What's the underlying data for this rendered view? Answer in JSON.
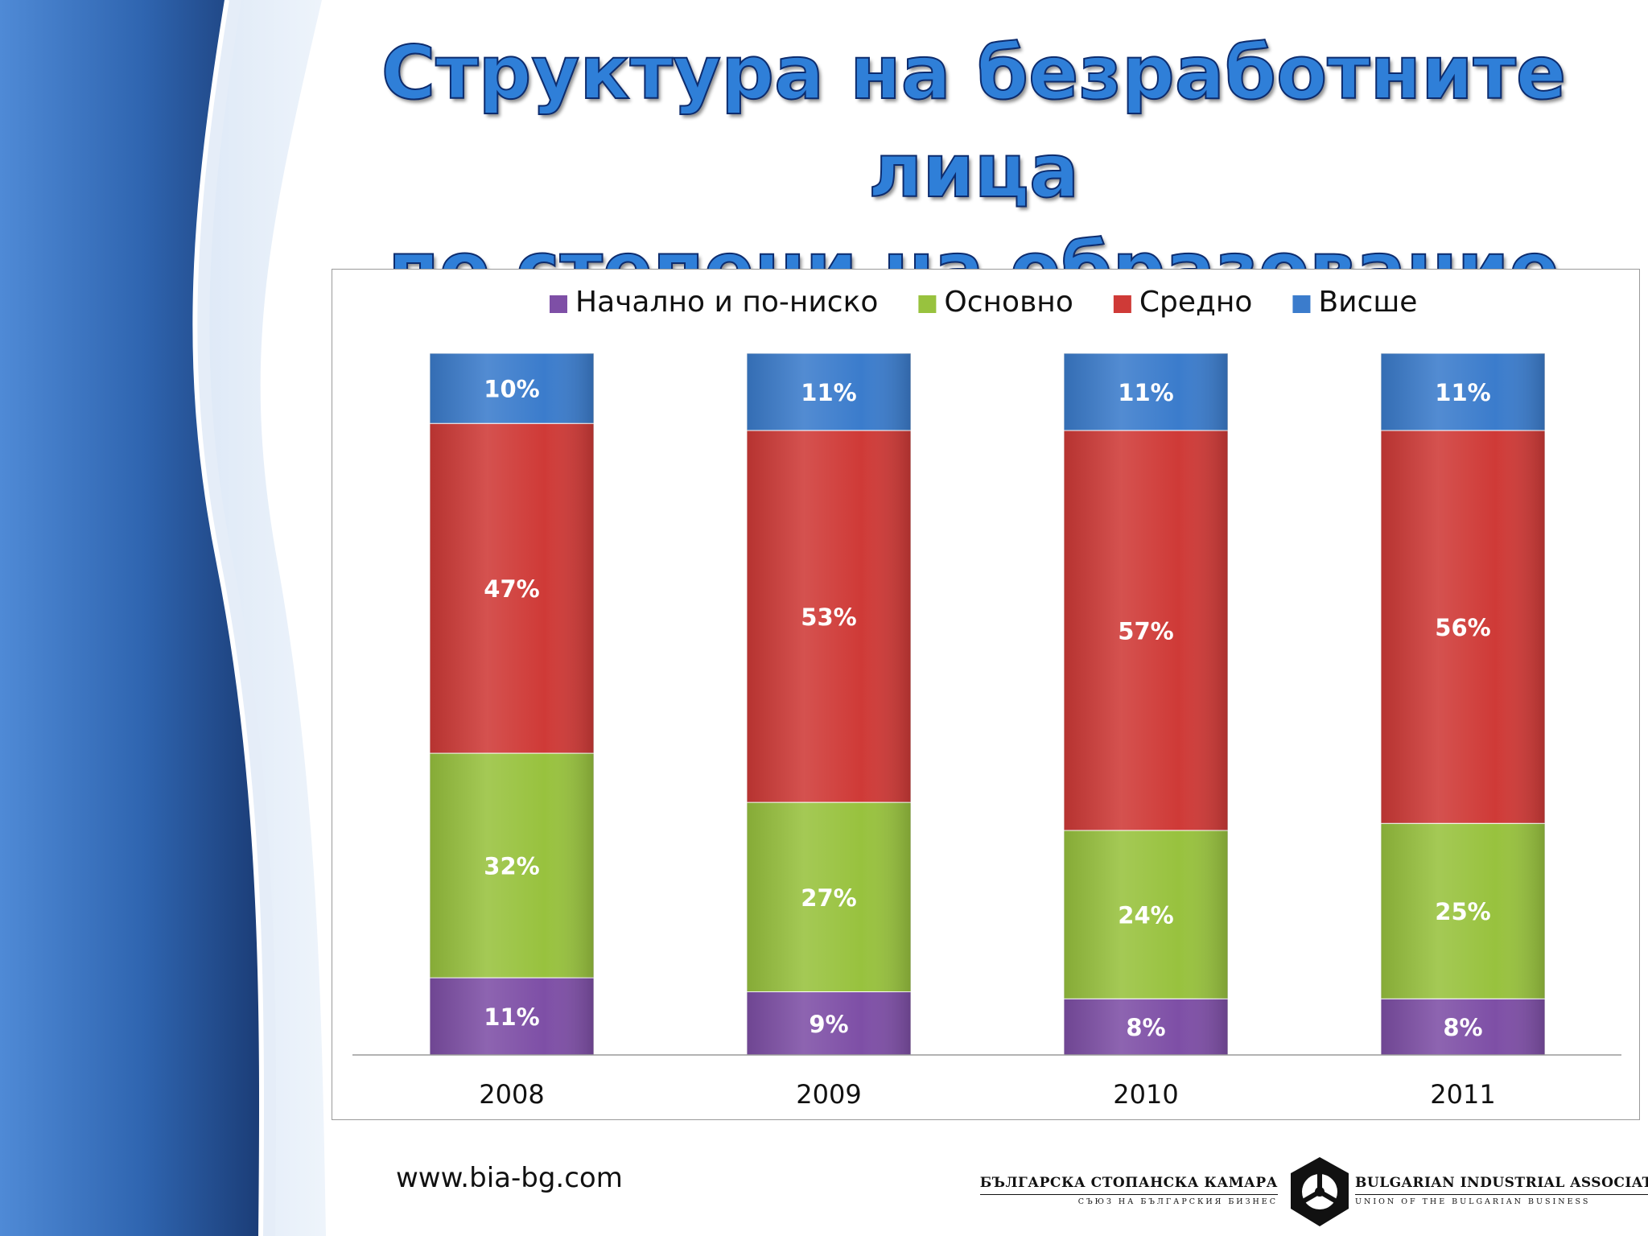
{
  "slide": {
    "title_line1": "Структура на безработните лица",
    "title_line2": "по степени на образование",
    "title_unit": "(%)",
    "footer_url": "www.bia-bg.com",
    "logo_bg_main": "БЪЛГАРСКА СТОПАНСКА КАМАРА",
    "logo_bg_sub": "СЪЮЗ НА БЪЛГАРСКИЯ БИЗНЕС",
    "logo_en_main": "BULGARIAN INDUSTRIAL ASSOCIATION",
    "logo_en_sub": "UNION OF THE BULGARIAN BUSINESS"
  },
  "chart_data": {
    "type": "bar",
    "stacked": true,
    "percent_stacked": true,
    "legend_position": "top",
    "grid": false,
    "categories": [
      "2008",
      "2009",
      "2010",
      "2011"
    ],
    "series": [
      {
        "name": "Начално и по-ниско",
        "color": "#7e4fa6",
        "values": [
          11,
          9,
          8,
          8
        ],
        "labels": [
          "11%",
          "9%",
          "8%",
          "8%"
        ]
      },
      {
        "name": "Основно",
        "color": "#98c23e",
        "values": [
          32,
          27,
          24,
          25
        ],
        "labels": [
          "32%",
          "27%",
          "24%",
          "25%"
        ]
      },
      {
        "name": "Средно",
        "color": "#cf3a37",
        "values": [
          47,
          53,
          57,
          56
        ],
        "labels": [
          "47%",
          "53%",
          "57%",
          "56%"
        ]
      },
      {
        "name": "Висше",
        "color": "#3b7ccc",
        "values": [
          10,
          11,
          11,
          11
        ],
        "labels": [
          "10%",
          "11%",
          "11%",
          "11%"
        ]
      }
    ]
  }
}
